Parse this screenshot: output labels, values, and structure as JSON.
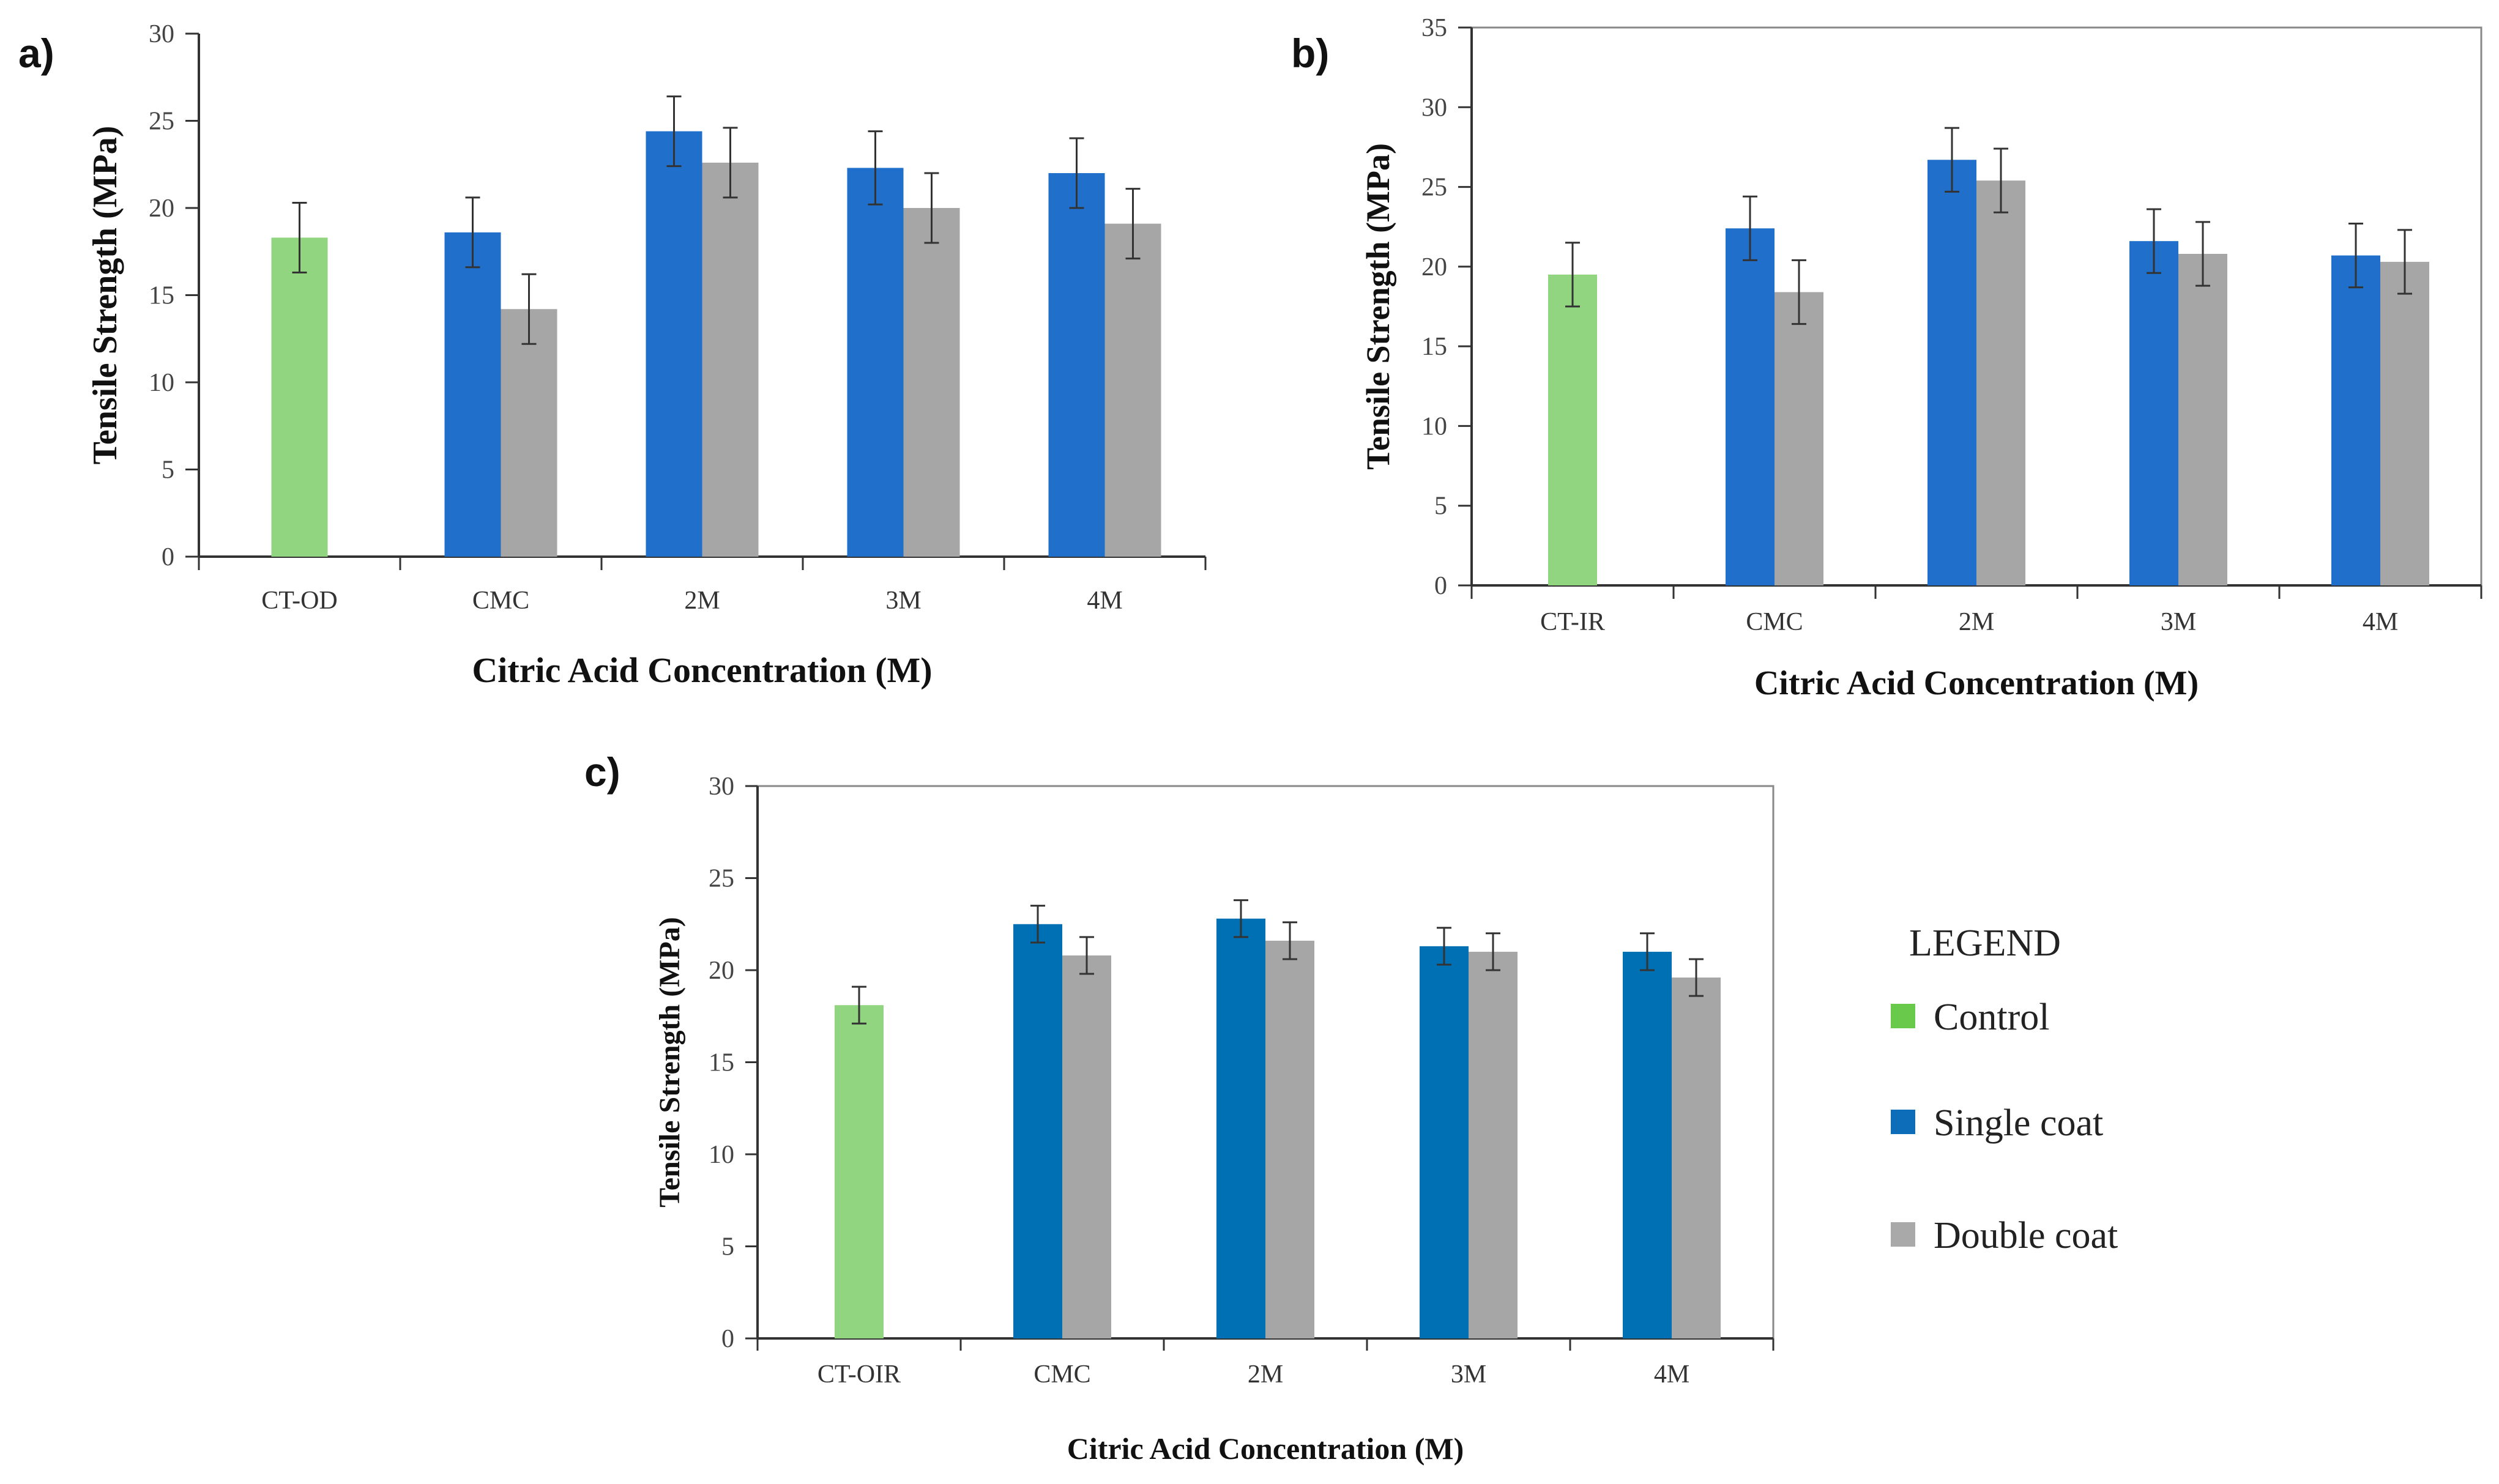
{
  "legend": {
    "title": "LEGEND",
    "items": [
      {
        "label": "Control",
        "color": "#69C94A"
      },
      {
        "label": "Single coat",
        "color": "#0E6DB8"
      },
      {
        "label": "Double coat",
        "color": "#A9A9A9"
      }
    ]
  },
  "chart_data": [
    {
      "panel": "a)",
      "type": "bar",
      "categories": [
        "CT-OD",
        "CMC",
        "2M",
        "3M",
        "4M"
      ],
      "xlabel": "Citric Acid Concentration (M)",
      "ylabel": "Tensile Strength (MPa)",
      "ylim": [
        0,
        30
      ],
      "yticks": [
        "0",
        "5",
        "10",
        "15",
        "20",
        "25",
        "30"
      ],
      "series": [
        {
          "name": "Control",
          "color": "#92D580",
          "values": [
            18.3,
            null,
            null,
            null,
            null
          ],
          "errors": [
            2.0,
            null,
            null,
            null,
            null
          ]
        },
        {
          "name": "Single coat",
          "color": "#1F6FCB",
          "values": [
            null,
            18.6,
            24.4,
            22.3,
            22.0
          ],
          "errors": [
            null,
            2.0,
            2.0,
            2.1,
            2.0
          ]
        },
        {
          "name": "Double coat",
          "color": "#A6A6A6",
          "values": [
            null,
            14.2,
            22.6,
            20.0,
            19.1
          ],
          "errors": [
            null,
            2.0,
            2.0,
            2.0,
            2.0
          ]
        }
      ]
    },
    {
      "panel": "b)",
      "type": "bar",
      "categories": [
        "CT-IR",
        "CMC",
        "2M",
        "3M",
        "4M"
      ],
      "xlabel": "Citric Acid Concentration (M)",
      "ylabel": "Tensile Strength (MPa)",
      "ylim": [
        0,
        35
      ],
      "yticks": [
        "0",
        "5",
        "10",
        "15",
        "20",
        "25",
        "30",
        "35"
      ],
      "series": [
        {
          "name": "Control",
          "color": "#92D580",
          "values": [
            19.5,
            null,
            null,
            null,
            null
          ],
          "errors": [
            2.0,
            null,
            null,
            null,
            null
          ]
        },
        {
          "name": "Single coat",
          "color": "#1F6FCB",
          "values": [
            null,
            22.4,
            26.7,
            21.6,
            20.7
          ],
          "errors": [
            null,
            2.0,
            2.0,
            2.0,
            2.0
          ]
        },
        {
          "name": "Double coat",
          "color": "#A6A6A6",
          "values": [
            null,
            18.4,
            25.4,
            20.8,
            20.3
          ],
          "errors": [
            null,
            2.0,
            2.0,
            2.0,
            2.0
          ]
        }
      ]
    },
    {
      "panel": "c)",
      "type": "bar",
      "categories": [
        "CT-OIR",
        "CMC",
        "2M",
        "3M",
        "4M"
      ],
      "xlabel": "Citric Acid Concentration (M)",
      "ylabel": "Tensile Strength (MPa)",
      "ylim": [
        0,
        30
      ],
      "yticks": [
        "0",
        "5",
        "10",
        "15",
        "20",
        "25",
        "30"
      ],
      "series": [
        {
          "name": "Control",
          "color": "#92D580",
          "values": [
            18.1,
            null,
            null,
            null,
            null
          ],
          "errors": [
            1.0,
            null,
            null,
            null,
            null
          ]
        },
        {
          "name": "Single coat",
          "color": "#0070B5",
          "values": [
            null,
            22.5,
            22.8,
            21.3,
            21.0
          ],
          "errors": [
            null,
            1.0,
            1.0,
            1.0,
            1.0
          ]
        },
        {
          "name": "Double coat",
          "color": "#A6A6A6",
          "values": [
            null,
            20.8,
            21.6,
            21.0,
            19.6
          ],
          "errors": [
            null,
            1.0,
            1.0,
            1.0,
            1.0
          ]
        }
      ]
    }
  ]
}
